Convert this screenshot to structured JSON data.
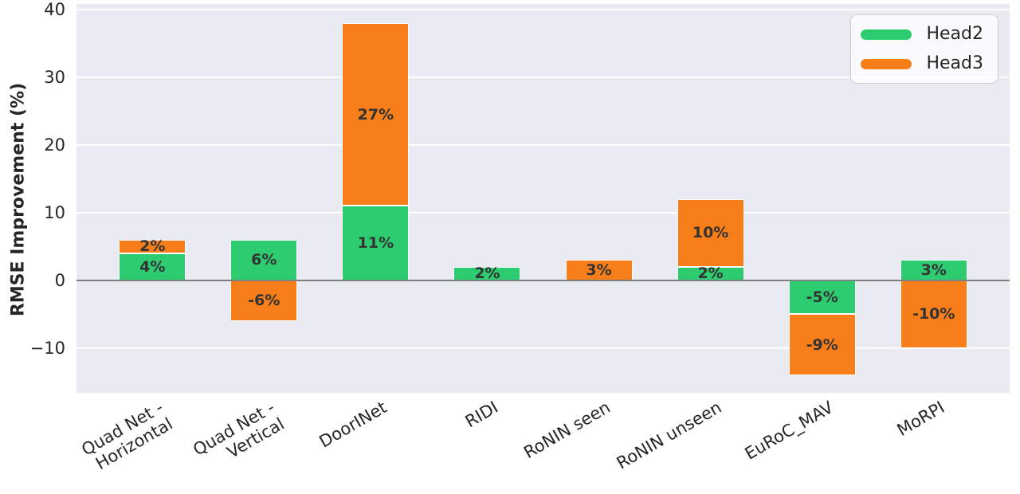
{
  "chart_data": {
    "type": "bar",
    "stacked": true,
    "title": "",
    "xlabel": "",
    "ylabel": "RMSE Improvement (%)",
    "categories": [
      "Quad Net -\nHorizontal",
      "Quad Net -\nVertical",
      "DoorINet",
      "RIDI",
      "RoNIN seen",
      "RoNIN unseen",
      "EuRoC_MAV",
      "MoRPI"
    ],
    "series": [
      {
        "name": "Head2",
        "color": "#2ecc71",
        "values": [
          4,
          6,
          11,
          2,
          0,
          2,
          -5,
          3
        ]
      },
      {
        "name": "Head3",
        "color": "#f87e1a",
        "values": [
          2,
          -6,
          27,
          0,
          3,
          10,
          -9,
          -10
        ]
      }
    ],
    "value_label_suffix": "%",
    "yticks": [
      -10,
      0,
      10,
      20,
      30,
      40
    ],
    "ylim": [
      -16.6,
      40.8
    ],
    "xlim": [
      -0.68,
      7.68
    ],
    "bar_width": 0.6,
    "grid": "horizontal",
    "legend_position": "upper right",
    "colors": {
      "plot_background": "#eaeaf2",
      "gridline": "#ffffff",
      "zero_line": "#7f7f7f",
      "tick_text": "#262626",
      "bar_label_text": "#333333",
      "segment_edge": "#ffffff"
    }
  }
}
